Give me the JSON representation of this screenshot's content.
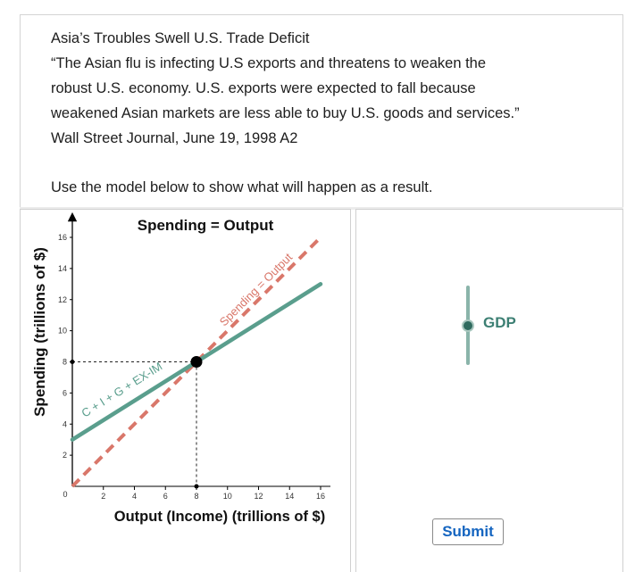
{
  "question": {
    "headline": "Asia’s Troubles Swell U.S. Trade Deficit",
    "quote_line1": "“The Asian flu is infecting U.S exports and threatens to weaken the",
    "quote_line2": "robust U.S. economy. U.S. exports were expected to fall because",
    "quote_line3": "weakened Asian markets are less able to buy U.S. goods and services.”",
    "source": "Wall Street Journal, June 19, 1998 A2",
    "instruction": "Use the model below to show what will happen as a result."
  },
  "chart_data": {
    "type": "line",
    "title": "Spending = Output",
    "xlabel": "Output (Income) (trillions of $)",
    "ylabel": "Spending (trillions of $)",
    "xlim": [
      0,
      16
    ],
    "ylim": [
      0,
      16
    ],
    "x_ticks": [
      "2",
      "4",
      "6",
      "8",
      "10",
      "12",
      "14",
      "16"
    ],
    "y_ticks": [
      "2",
      "4",
      "6",
      "8",
      "10",
      "12",
      "14",
      "16"
    ],
    "origin_label": "0",
    "series": [
      {
        "name": "Spending = Output",
        "style": "dashed",
        "color": "#d9776a",
        "points": [
          [
            0,
            0
          ],
          [
            16,
            16
          ]
        ]
      },
      {
        "name": "C + I + G + EX-IM",
        "style": "solid",
        "color": "#5a9e8d",
        "points": [
          [
            0,
            3
          ],
          [
            16,
            13
          ]
        ]
      }
    ],
    "equilibrium": {
      "x": 8,
      "y": 8
    }
  },
  "slider": {
    "label": "GDP",
    "track_color": "#8ab4aa",
    "knob_color": "#2f6b5f"
  },
  "submit": {
    "label": "Submit",
    "color": "#1565c0"
  }
}
